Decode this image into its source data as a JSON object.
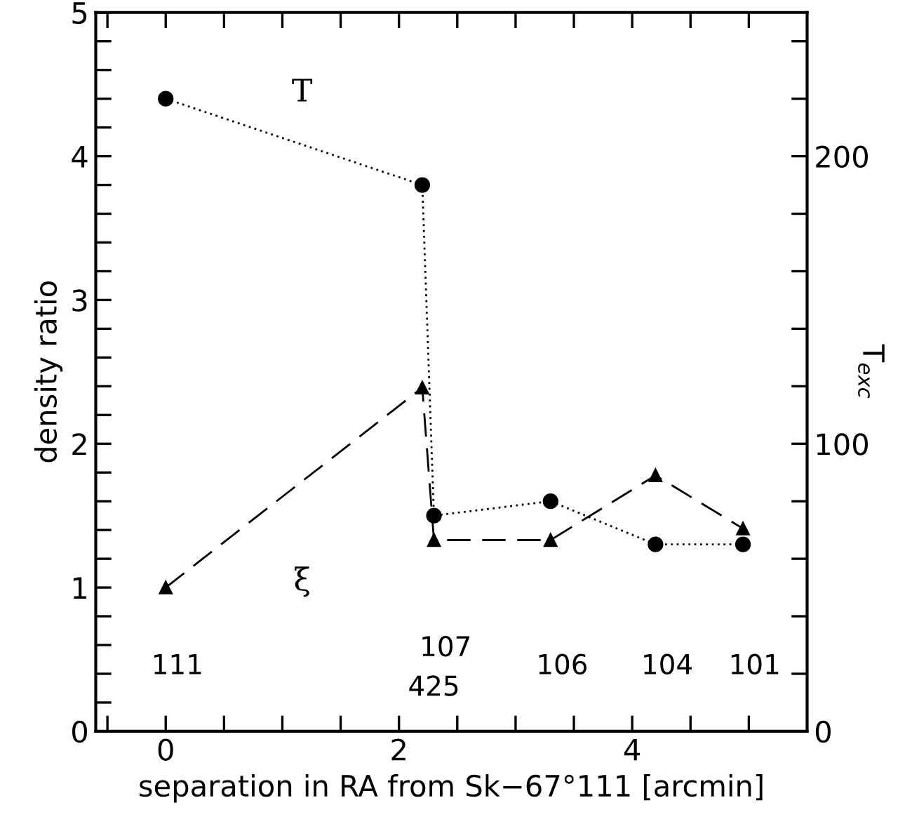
{
  "chart_data": {
    "type": "line",
    "xlabel": "separation in RA from Sk−67°111 [arcmin]",
    "ylabel": "density ratio",
    "y2label": "T$_{exc}$",
    "x": [
      0,
      2.2,
      2.3,
      3.3,
      4.2,
      4.95
    ],
    "series": [
      {
        "name": "ξ",
        "color": "#000000",
        "marker": "triangle",
        "line_style": "dashed",
        "values": [
          1.0,
          2.39,
          1.33,
          1.33,
          1.78,
          1.41
        ]
      },
      {
        "name": "T",
        "color": "#000000",
        "marker": "circle",
        "line_style": "dotted",
        "axis": "y2",
        "values": [
          220,
          190,
          75,
          80,
          65,
          65
        ]
      }
    ],
    "xlim": [
      -0.6,
      5.5
    ],
    "xticks": [
      {
        "value": -0.5,
        "label": null
      },
      0,
      {
        "value": 0.5,
        "label": null
      },
      {
        "value": 1,
        "label": null
      },
      {
        "value": 1.5,
        "label": null
      },
      2,
      {
        "value": 2.5,
        "label": null
      },
      {
        "value": 3,
        "label": null
      },
      {
        "value": 3.5,
        "label": null
      },
      4,
      {
        "value": 4.5,
        "label": null
      },
      {
        "value": 5,
        "label": null
      }
    ],
    "ylim": [
      0,
      5
    ],
    "yticks": [
      0,
      {
        "value": 0.2,
        "label": null
      },
      {
        "value": 0.4,
        "label": null
      },
      {
        "value": 0.6,
        "label": null
      },
      {
        "value": 0.8,
        "label": null
      },
      1,
      {
        "value": 1.2,
        "label": null
      },
      {
        "value": 1.4,
        "label": null
      },
      {
        "value": 1.6,
        "label": null
      },
      {
        "value": 1.8,
        "label": null
      },
      2,
      {
        "value": 2.2,
        "label": null
      },
      {
        "value": 2.4,
        "label": null
      },
      {
        "value": 2.6,
        "label": null
      },
      {
        "value": 2.8,
        "label": null
      },
      3,
      {
        "value": 3.2,
        "label": null
      },
      {
        "value": 3.4,
        "label": null
      },
      {
        "value": 3.6,
        "label": null
      },
      {
        "value": 3.8,
        "label": null
      },
      4,
      {
        "value": 4.2,
        "label": null
      },
      {
        "value": 4.4,
        "label": null
      },
      {
        "value": 4.6,
        "label": null
      },
      {
        "value": 4.8,
        "label": null
      },
      5
    ],
    "y2lim": [
      0,
      250
    ],
    "y2ticks": [
      0,
      {
        "value": 20,
        "label": null
      },
      {
        "value": 40,
        "label": null
      },
      {
        "value": 60,
        "label": null
      },
      {
        "value": 80,
        "label": null
      },
      100,
      {
        "value": 120,
        "label": null
      },
      {
        "value": 140,
        "label": null
      },
      {
        "value": 160,
        "label": null
      },
      {
        "value": 180,
        "label": null
      },
      200,
      {
        "value": 220,
        "label": null
      },
      {
        "value": 240,
        "label": null
      }
    ],
    "annotations": [
      "111",
      "425",
      "107",
      "106",
      "104",
      "101"
    ],
    "grid": false,
    "legend": false
  }
}
